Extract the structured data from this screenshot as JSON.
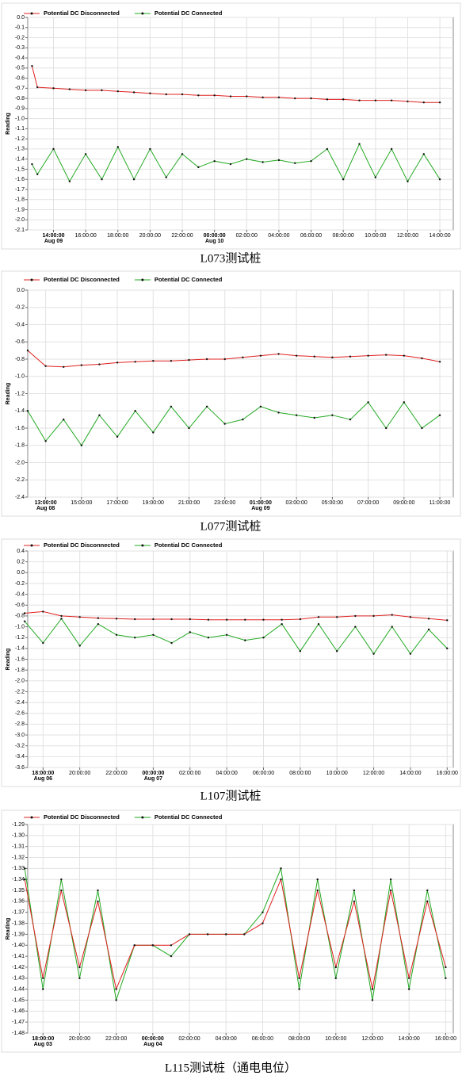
{
  "chart_data": [
    {
      "type": "line",
      "caption": "L073测试桩",
      "y_label": "Reading",
      "grid": true,
      "legend": "top-left",
      "xlim": [
        "Aug 09 12:24",
        "Aug 10 14:50"
      ],
      "ylim": [
        -2.1,
        0
      ],
      "yticks": [
        {
          "value": 0,
          "label": "0.0"
        },
        -0.1,
        -0.2,
        -0.3,
        -0.4,
        -0.5,
        -0.6,
        -0.7,
        -0.8,
        -0.9,
        {
          "value": -1,
          "label": "-1.0"
        },
        -1.1,
        -1.2,
        -1.3,
        -1.4,
        -1.5,
        -1.6,
        -1.7,
        -1.8,
        -1.9,
        {
          "value": -2,
          "label": "-2.0"
        },
        -2.1
      ],
      "xticks": [
        {
          "value": "Aug 09 14:00",
          "label": "14:00:00",
          "date": "Aug 09"
        },
        {
          "value": "Aug 09 16:00",
          "label": "16:00:00"
        },
        {
          "value": "Aug 09 18:00",
          "label": "18:00:00"
        },
        {
          "value": "Aug 09 20:00",
          "label": "20:00:00"
        },
        {
          "value": "Aug 09 22:00",
          "label": "22:00:00"
        },
        {
          "value": "Aug 10 00:00",
          "label": "00:00:00",
          "date": "Aug 10"
        },
        {
          "value": "Aug 10 02:00",
          "label": "02:00:00"
        },
        {
          "value": "Aug 10 04:00",
          "label": "04:00:00"
        },
        {
          "value": "Aug 10 06:00",
          "label": "06:00:00"
        },
        {
          "value": "Aug 10 08:00",
          "label": "08:00:00"
        },
        {
          "value": "Aug 10 10:00",
          "label": "10:00:00"
        },
        {
          "value": "Aug 10 12:00",
          "label": "12:00:00"
        },
        {
          "value": "Aug 10 14:00",
          "label": "14:00:00"
        }
      ],
      "x": [
        "Aug 09 12:40",
        "Aug 09 13:00",
        "Aug 09 14:00",
        "Aug 09 15:00",
        "Aug 09 16:00",
        "Aug 09 17:00",
        "Aug 09 18:00",
        "Aug 09 19:00",
        "Aug 09 20:00",
        "Aug 09 21:00",
        "Aug 09 22:00",
        "Aug 09 23:00",
        "Aug 10 00:00",
        "Aug 10 01:00",
        "Aug 10 02:00",
        "Aug 10 03:00",
        "Aug 10 04:00",
        "Aug 10 05:00",
        "Aug 10 06:00",
        "Aug 10 07:00",
        "Aug 10 08:00",
        "Aug 10 09:00",
        "Aug 10 10:00",
        "Aug 10 11:00",
        "Aug 10 12:00",
        "Aug 10 13:00",
        "Aug 10 14:00"
      ],
      "series": [
        {
          "name": "Potential DC Disconnected",
          "color": "#e02020",
          "values": [
            -0.48,
            -0.69,
            -0.7,
            -0.71,
            -0.72,
            -0.72,
            -0.73,
            -0.74,
            -0.75,
            -0.76,
            -0.76,
            -0.77,
            -0.77,
            -0.78,
            -0.78,
            -0.79,
            -0.79,
            -0.8,
            -0.8,
            -0.81,
            -0.81,
            -0.82,
            -0.82,
            -0.82,
            -0.83,
            -0.84,
            -0.84
          ]
        },
        {
          "name": "Potential DC Connected",
          "color": "#22aa22",
          "values": [
            -1.45,
            -1.55,
            -1.3,
            -1.62,
            -1.35,
            -1.6,
            -1.28,
            -1.6,
            -1.3,
            -1.58,
            -1.35,
            -1.48,
            -1.42,
            -1.45,
            -1.4,
            -1.43,
            -1.41,
            -1.44,
            -1.42,
            -1.3,
            -1.6,
            -1.25,
            -1.58,
            -1.3,
            -1.62,
            -1.35,
            -1.6
          ]
        }
      ]
    },
    {
      "type": "line",
      "caption": "L077测试桩",
      "y_label": "Reading",
      "grid": true,
      "legend": "top-left",
      "xlim": [
        "Aug 08 12:00",
        "Aug 09 11:45"
      ],
      "ylim": [
        -2.4,
        0
      ],
      "yticks": [
        {
          "value": 0,
          "label": "0.0"
        },
        -0.2,
        -0.4,
        -0.6,
        -0.8,
        {
          "value": -1,
          "label": "-1.0"
        },
        -1.2,
        -1.4,
        -1.6,
        -1.8,
        {
          "value": -2,
          "label": "-2.0"
        },
        -2.2,
        -2.4
      ],
      "xticks": [
        {
          "value": "Aug 08 13:00",
          "label": "13:00:00",
          "date": "Aug 08"
        },
        {
          "value": "Aug 08 15:00",
          "label": "15:00:00"
        },
        {
          "value": "Aug 08 17:00",
          "label": "17:00:00"
        },
        {
          "value": "Aug 08 19:00",
          "label": "19:00:00"
        },
        {
          "value": "Aug 08 21:00",
          "label": "21:00:00"
        },
        {
          "value": "Aug 08 23:00",
          "label": "23:00:00"
        },
        {
          "value": "Aug 09 01:00",
          "label": "01:00:00",
          "date": "Aug 09"
        },
        {
          "value": "Aug 09 03:00",
          "label": "03:00:00"
        },
        {
          "value": "Aug 09 05:00",
          "label": "05:00:00"
        },
        {
          "value": "Aug 09 07:00",
          "label": "07:00:00"
        },
        {
          "value": "Aug 09 09:00",
          "label": "09:00:00"
        },
        {
          "value": "Aug 09 11:00",
          "label": "11:00:00"
        }
      ],
      "x": [
        "Aug 08 12:00",
        "Aug 08 13:00",
        "Aug 08 14:00",
        "Aug 08 15:00",
        "Aug 08 16:00",
        "Aug 08 17:00",
        "Aug 08 18:00",
        "Aug 08 19:00",
        "Aug 08 20:00",
        "Aug 08 21:00",
        "Aug 08 22:00",
        "Aug 08 23:00",
        "Aug 09 00:00",
        "Aug 09 01:00",
        "Aug 09 02:00",
        "Aug 09 03:00",
        "Aug 09 04:00",
        "Aug 09 05:00",
        "Aug 09 06:00",
        "Aug 09 07:00",
        "Aug 09 08:00",
        "Aug 09 09:00",
        "Aug 09 10:00",
        "Aug 09 11:00"
      ],
      "series": [
        {
          "name": "Potential DC Disconnected",
          "color": "#e02020",
          "values": [
            -0.7,
            -0.88,
            -0.89,
            -0.87,
            -0.86,
            -0.84,
            -0.83,
            -0.82,
            -0.82,
            -0.81,
            -0.8,
            -0.8,
            -0.78,
            -0.76,
            -0.74,
            -0.76,
            -0.77,
            -0.78,
            -0.77,
            -0.76,
            -0.75,
            -0.76,
            -0.79,
            -0.83
          ]
        },
        {
          "name": "Potential DC Connected",
          "color": "#22aa22",
          "values": [
            -1.4,
            -1.75,
            -1.5,
            -1.8,
            -1.45,
            -1.7,
            -1.4,
            -1.65,
            -1.35,
            -1.6,
            -1.35,
            -1.55,
            -1.5,
            -1.35,
            -1.42,
            -1.45,
            -1.48,
            -1.45,
            -1.5,
            -1.3,
            -1.6,
            -1.3,
            -1.6,
            -1.45
          ]
        }
      ]
    },
    {
      "type": "line",
      "caption": "L107测试桩",
      "y_label": "Reading",
      "grid": true,
      "legend": "top-left",
      "xlim": [
        "Aug 06 17:10",
        "Aug 07 16:20"
      ],
      "ylim": [
        -3.6,
        0.4
      ],
      "yticks": [
        0.4,
        0.2,
        {
          "value": 0,
          "label": "0.0"
        },
        -0.2,
        -0.4,
        -0.6,
        -0.8,
        {
          "value": -1,
          "label": "-1.0"
        },
        -1.2,
        -1.4,
        -1.6,
        -1.8,
        {
          "value": -2,
          "label": "-2.0"
        },
        -2.2,
        -2.4,
        -2.6,
        -2.8,
        {
          "value": -3,
          "label": "-3.0"
        },
        -3.2,
        -3.4,
        -3.6
      ],
      "xticks": [
        {
          "value": "Aug 06 18:00",
          "label": "18:00:00",
          "date": "Aug 06"
        },
        {
          "value": "Aug 06 20:00",
          "label": "20:00:00"
        },
        {
          "value": "Aug 06 22:00",
          "label": "22:00:00"
        },
        {
          "value": "Aug 07 00:00",
          "label": "00:00:00",
          "date": "Aug 07"
        },
        {
          "value": "Aug 07 02:00",
          "label": "02:00:00"
        },
        {
          "value": "Aug 07 04:00",
          "label": "04:00:00"
        },
        {
          "value": "Aug 07 06:00",
          "label": "06:00:00"
        },
        {
          "value": "Aug 07 08:00",
          "label": "08:00:00"
        },
        {
          "value": "Aug 07 10:00",
          "label": "10:00:00"
        },
        {
          "value": "Aug 07 12:00",
          "label": "12:00:00"
        },
        {
          "value": "Aug 07 14:00",
          "label": "14:00:00"
        },
        {
          "value": "Aug 07 16:00",
          "label": "16:00:00"
        }
      ],
      "x": [
        "Aug 06 17:00",
        "Aug 06 18:00",
        "Aug 06 19:00",
        "Aug 06 20:00",
        "Aug 06 21:00",
        "Aug 06 22:00",
        "Aug 06 23:00",
        "Aug 07 00:00",
        "Aug 07 01:00",
        "Aug 07 02:00",
        "Aug 07 03:00",
        "Aug 07 04:00",
        "Aug 07 05:00",
        "Aug 07 06:00",
        "Aug 07 07:00",
        "Aug 07 08:00",
        "Aug 07 09:00",
        "Aug 07 10:00",
        "Aug 07 11:00",
        "Aug 07 12:00",
        "Aug 07 13:00",
        "Aug 07 14:00",
        "Aug 07 15:00",
        "Aug 07 16:00"
      ],
      "series": [
        {
          "name": "Potential DC Disconnected",
          "color": "#e02020",
          "values": [
            -0.75,
            -0.72,
            -0.8,
            -0.82,
            -0.84,
            -0.85,
            -0.86,
            -0.86,
            -0.86,
            -0.86,
            -0.87,
            -0.87,
            -0.87,
            -0.87,
            -0.87,
            -0.86,
            -0.82,
            -0.82,
            -0.8,
            -0.8,
            -0.78,
            -0.82,
            -0.85,
            -0.88
          ]
        },
        {
          "name": "Potential DC Connected",
          "color": "#22aa22",
          "values": [
            -0.9,
            -1.3,
            -0.85,
            -1.35,
            -0.95,
            -1.15,
            -1.2,
            -1.15,
            -1.3,
            -1.1,
            -1.2,
            -1.15,
            -1.25,
            -1.2,
            -0.95,
            -1.45,
            -0.95,
            -1.45,
            -1.0,
            -1.5,
            -1.0,
            -1.5,
            -1.05,
            -1.4
          ]
        }
      ]
    },
    {
      "type": "line",
      "caption": "L115测试桩（通电电位）",
      "y_label": "Reading",
      "grid": true,
      "legend": "top-left",
      "xlim": [
        "Aug 03 17:10",
        "Aug 04 16:25"
      ],
      "ylim": [
        -1.48,
        -1.29
      ],
      "yticks": [
        -1.29,
        {
          "value": -1.3,
          "label": "-1.30"
        },
        -1.31,
        -1.32,
        -1.33,
        -1.34,
        -1.35,
        -1.36,
        -1.37,
        -1.38,
        -1.39,
        {
          "value": -1.4,
          "label": "-1.40"
        },
        -1.41,
        -1.42,
        -1.43,
        -1.44,
        -1.45,
        -1.46,
        -1.47,
        -1.48
      ],
      "xticks": [
        {
          "value": "Aug 03 18:00",
          "label": "18:00:00",
          "date": "Aug 03"
        },
        {
          "value": "Aug 03 20:00",
          "label": "20:00:00"
        },
        {
          "value": "Aug 03 22:00",
          "label": "22:00:00"
        },
        {
          "value": "Aug 04 00:00",
          "label": "00:00:00",
          "date": "Aug 04"
        },
        {
          "value": "Aug 04 02:00",
          "label": "02:00:00"
        },
        {
          "value": "Aug 04 04:00",
          "label": "04:00:00"
        },
        {
          "value": "Aug 04 06:00",
          "label": "06:00:00"
        },
        {
          "value": "Aug 04 08:00",
          "label": "08:00:00"
        },
        {
          "value": "Aug 04 10:00",
          "label": "10:00:00"
        },
        {
          "value": "Aug 04 12:00",
          "label": "12:00:00"
        },
        {
          "value": "Aug 04 14:00",
          "label": "14:00:00"
        },
        {
          "value": "Aug 04 16:00",
          "label": "16:00:00"
        }
      ],
      "x": [
        "Aug 03 17:00",
        "Aug 03 18:00",
        "Aug 03 19:00",
        "Aug 03 20:00",
        "Aug 03 21:00",
        "Aug 03 22:00",
        "Aug 03 23:00",
        "Aug 04 00:00",
        "Aug 04 01:00",
        "Aug 04 02:00",
        "Aug 04 03:00",
        "Aug 04 04:00",
        "Aug 04 05:00",
        "Aug 04 06:00",
        "Aug 04 07:00",
        "Aug 04 08:00",
        "Aug 04 09:00",
        "Aug 04 10:00",
        "Aug 04 11:00",
        "Aug 04 12:00",
        "Aug 04 13:00",
        "Aug 04 14:00",
        "Aug 04 15:00",
        "Aug 04 16:00"
      ],
      "series": [
        {
          "name": "Potential DC Disconnected",
          "color": "#e02020",
          "values": [
            -1.34,
            -1.43,
            -1.35,
            -1.42,
            -1.36,
            -1.44,
            -1.4,
            -1.4,
            -1.4,
            -1.39,
            -1.39,
            -1.39,
            -1.39,
            -1.38,
            -1.34,
            -1.43,
            -1.35,
            -1.42,
            -1.36,
            -1.44,
            -1.35,
            -1.43,
            -1.36,
            -1.42
          ]
        },
        {
          "name": "Potential DC Connected",
          "color": "#22aa22",
          "values": [
            -1.33,
            -1.44,
            -1.34,
            -1.43,
            -1.35,
            -1.45,
            -1.4,
            -1.4,
            -1.41,
            -1.39,
            -1.39,
            -1.39,
            -1.39,
            -1.37,
            -1.33,
            -1.44,
            -1.34,
            -1.43,
            -1.35,
            -1.45,
            -1.34,
            -1.44,
            -1.35,
            -1.43
          ]
        }
      ]
    }
  ]
}
